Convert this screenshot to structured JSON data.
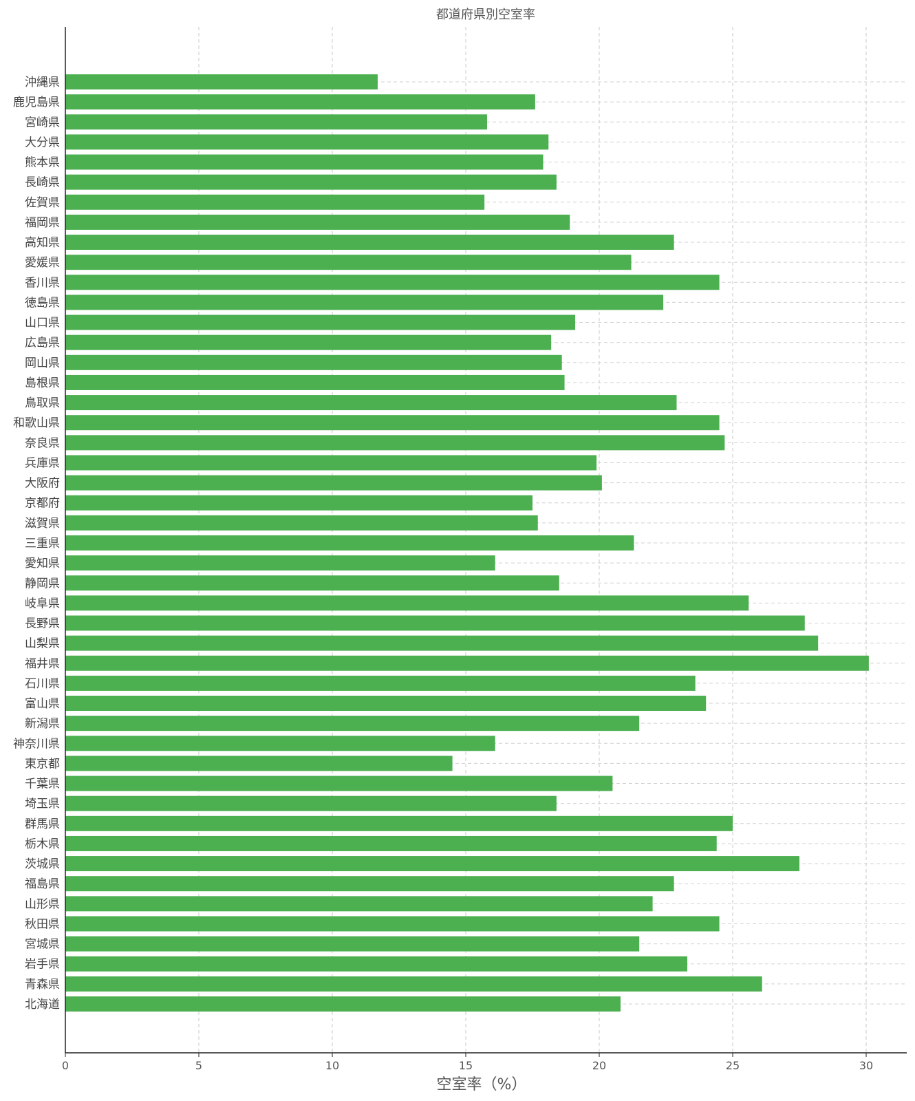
{
  "chart_data": {
    "type": "bar",
    "orientation": "horizontal",
    "title": "都道府県別空室率",
    "xlabel": "空室率（%）",
    "ylabel": "",
    "xlim": [
      0,
      31.6
    ],
    "xticks": [
      0,
      5,
      10,
      15,
      20,
      25,
      30
    ],
    "grid": true,
    "bar_color": "#4caf50",
    "categories": [
      "沖縄県",
      "鹿児島県",
      "宮崎県",
      "大分県",
      "熊本県",
      "長崎県",
      "佐賀県",
      "福岡県",
      "高知県",
      "愛媛県",
      "香川県",
      "徳島県",
      "山口県",
      "広島県",
      "岡山県",
      "島根県",
      "鳥取県",
      "和歌山県",
      "奈良県",
      "兵庫県",
      "大阪府",
      "京都府",
      "滋賀県",
      "三重県",
      "愛知県",
      "静岡県",
      "岐阜県",
      "長野県",
      "山梨県",
      "福井県",
      "石川県",
      "富山県",
      "新潟県",
      "神奈川県",
      "東京都",
      "千葉県",
      "埼玉県",
      "群馬県",
      "栃木県",
      "茨城県",
      "福島県",
      "山形県",
      "秋田県",
      "宮城県",
      "岩手県",
      "青森県",
      "北海道"
    ],
    "values": [
      11.7,
      17.6,
      15.8,
      18.1,
      17.9,
      18.4,
      15.7,
      18.9,
      22.8,
      21.2,
      24.5,
      22.4,
      19.1,
      18.2,
      18.6,
      18.7,
      22.9,
      24.5,
      24.7,
      19.9,
      20.1,
      17.5,
      17.7,
      21.3,
      16.1,
      18.5,
      25.6,
      27.7,
      28.2,
      30.1,
      23.6,
      24.0,
      21.5,
      16.1,
      14.5,
      20.5,
      18.4,
      25.0,
      24.4,
      27.5,
      22.8,
      22.0,
      24.5,
      21.5,
      23.3,
      26.1,
      20.8
    ]
  }
}
